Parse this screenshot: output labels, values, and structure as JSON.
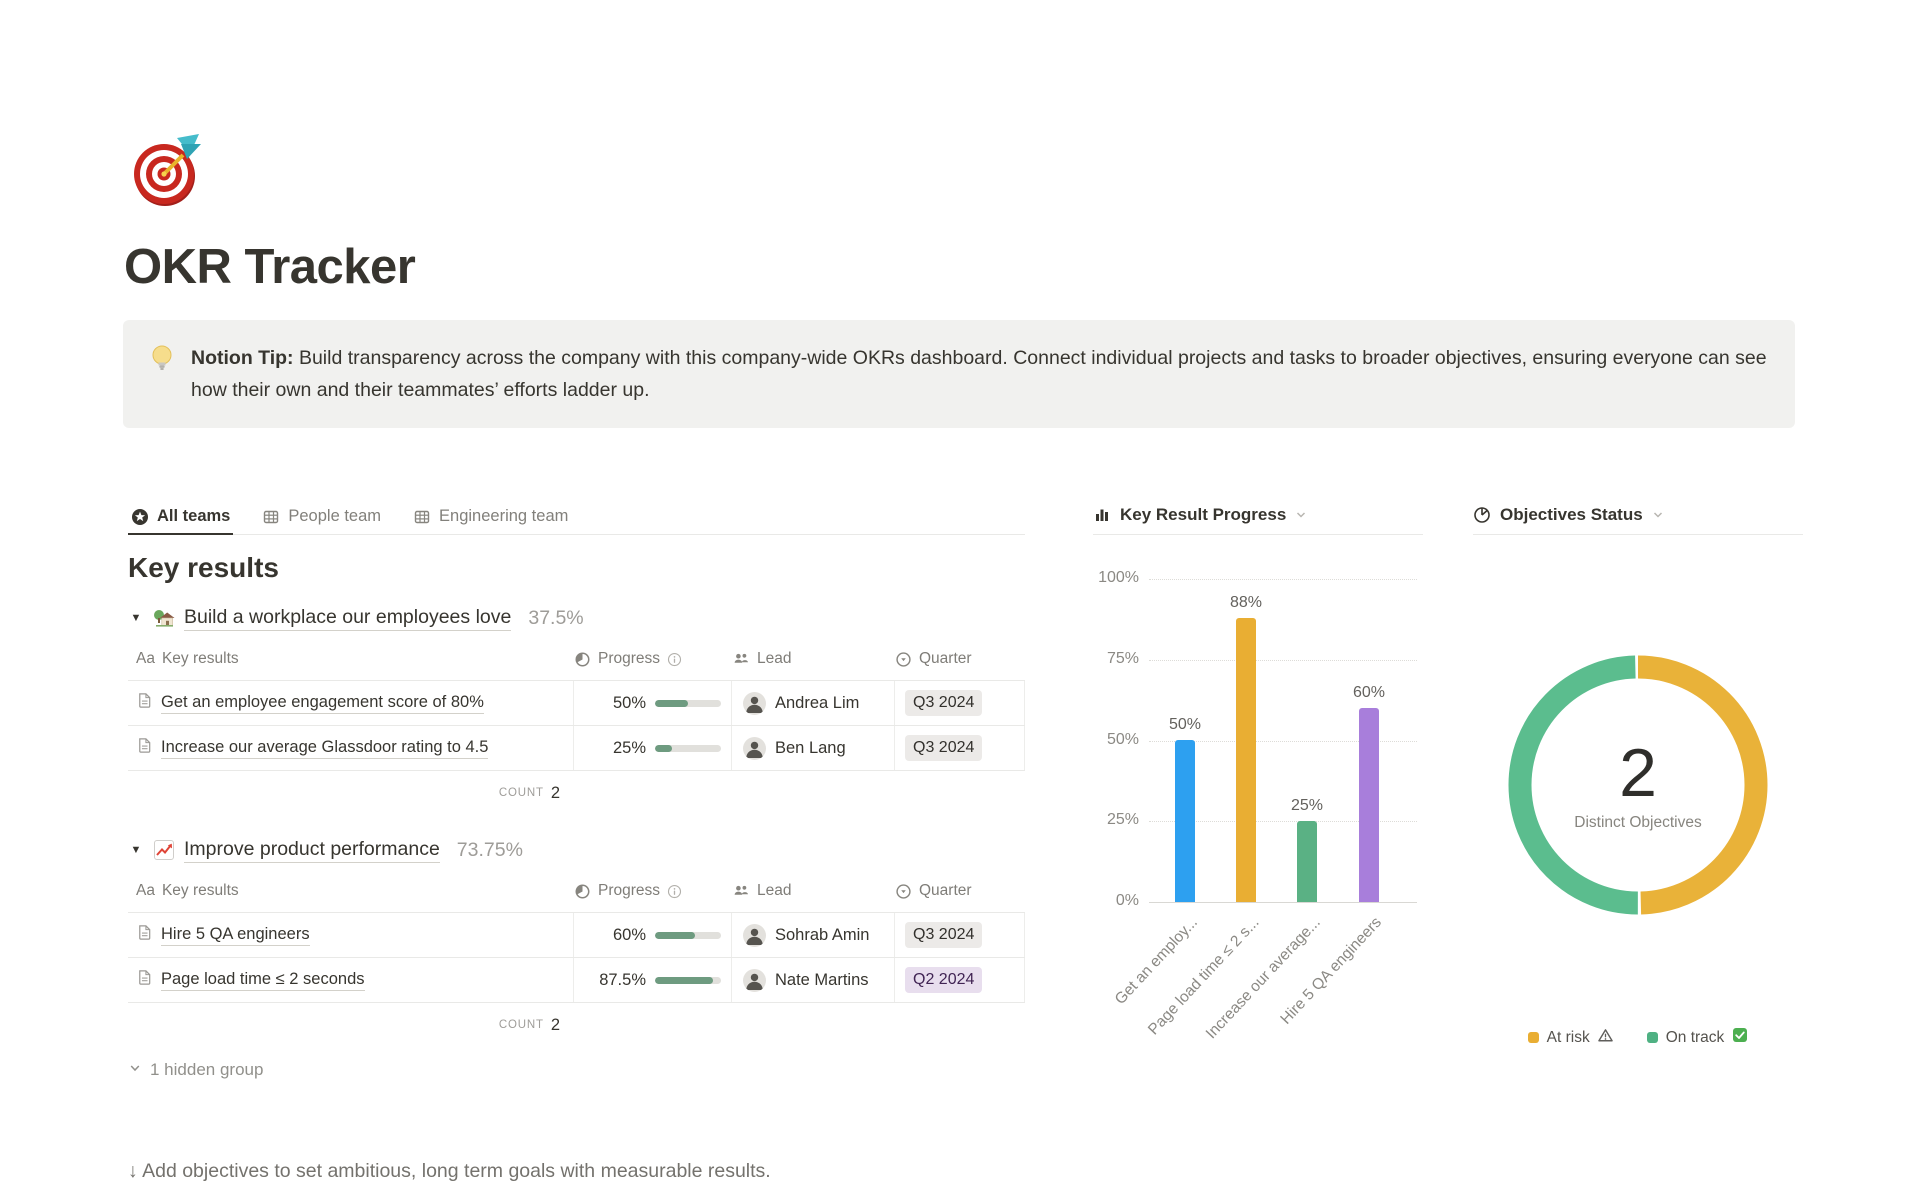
{
  "page": {
    "title": "OKR Tracker",
    "icon": "dartboard"
  },
  "callout": {
    "icon": "lightbulb",
    "bold_prefix": "Notion Tip:",
    "text": " Build transparency across the company with this company-wide OKRs dashboard. Connect individual projects and tasks to broader objectives, ensuring everyone can see how their own and their teammates’ efforts ladder up."
  },
  "tabs": [
    {
      "label": "All teams",
      "icon": "star-circle-icon",
      "active": true
    },
    {
      "label": "People team",
      "icon": "table-view-icon",
      "active": false
    },
    {
      "label": "Engineering team",
      "icon": "table-view-icon",
      "active": false
    }
  ],
  "key_results": {
    "heading": "Key results",
    "columns": {
      "name_prefix": "Aa",
      "name": "Key results",
      "progress": "Progress",
      "lead": "Lead",
      "quarter": "Quarter"
    },
    "groups": [
      {
        "emoji": "house-with-garden",
        "title": "Build a workplace our employees love",
        "percent": "37.5%",
        "rows": [
          {
            "name": "Get an employee engagement score of 80%",
            "progress": "50%",
            "progress_value": 50,
            "lead": "Andrea Lim",
            "quarter": "Q3 2024",
            "quarter_color": "gray"
          },
          {
            "name": "Increase our average Glassdoor rating to 4.5",
            "progress": "25%",
            "progress_value": 25,
            "lead": "Ben Lang",
            "quarter": "Q3 2024",
            "quarter_color": "gray"
          }
        ],
        "count_label": "COUNT",
        "count": "2"
      },
      {
        "emoji": "chart-increasing",
        "title": "Improve product performance",
        "percent": "73.75%",
        "rows": [
          {
            "name": "Hire 5 QA engineers",
            "progress": "60%",
            "progress_value": 60,
            "lead": "Sohrab Amin",
            "quarter": "Q3 2024",
            "quarter_color": "gray"
          },
          {
            "name": "Page load time ≤ 2 seconds",
            "progress": "87.5%",
            "progress_value": 87.5,
            "lead": "Nate Martins",
            "quarter": "Q2 2024",
            "quarter_color": "purple"
          }
        ],
        "count_label": "COUNT",
        "count": "2"
      }
    ],
    "hidden_group_label": "1 hidden group"
  },
  "charts": {
    "bar": {
      "header": "Key Result Progress"
    },
    "donut": {
      "header": "Objectives Status",
      "center_value": "2",
      "center_label": "Distinct Objectives",
      "legend": [
        {
          "label": "At risk",
          "icon": "warning-icon",
          "color": "#e9ae33"
        },
        {
          "label": "On track",
          "icon": "check-icon",
          "color": "#4fb183"
        }
      ]
    }
  },
  "chart_data": [
    {
      "type": "bar",
      "title": "Key Result Progress",
      "categories": [
        "Get an employ...",
        "Page load time ≤ 2 s...",
        "Increase our average...",
        "Hire 5 QA engineers"
      ],
      "values": [
        50,
        88,
        25,
        60
      ],
      "value_labels": [
        "50%",
        "88%",
        "25%",
        "60%"
      ],
      "yticks": [
        "100%",
        "75%",
        "50%",
        "25%",
        "0%"
      ],
      "ylim": [
        0,
        100
      ],
      "colors": [
        "#2da0f0",
        "#e9ae33",
        "#5ab184",
        "#a87edb"
      ],
      "grid": "dotted-horizontal",
      "xlabel_rotation": -47
    },
    {
      "type": "pie",
      "donut": true,
      "title": "Objectives Status",
      "labels": [
        "At risk",
        "On track"
      ],
      "values": [
        1,
        1
      ],
      "colors": [
        "#e9b239",
        "#5bbd8e"
      ],
      "center_value": "2",
      "center_label": "Distinct Objectives",
      "legend_position": "bottom"
    }
  ],
  "footer": {
    "text": "↓ Add objectives to set ambitious, long term goals with measurable results."
  }
}
